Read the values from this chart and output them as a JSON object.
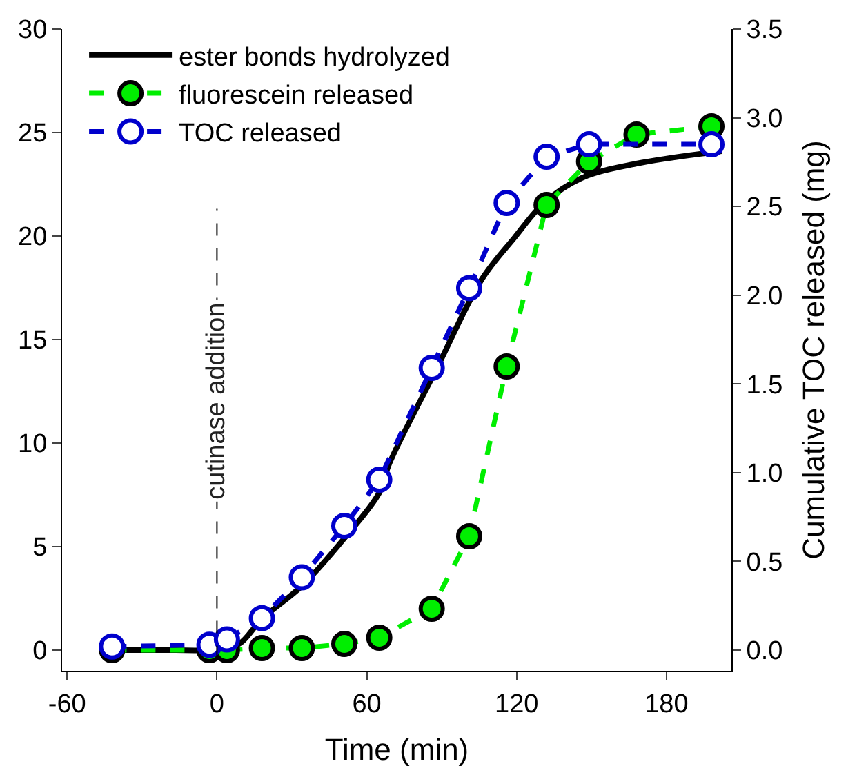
{
  "chart_data": {
    "type": "line",
    "xlabel": "Time (min)",
    "y2label": "Cumulative TOC released (mg)",
    "xlim": [
      -62,
      206
    ],
    "xticks": [
      -60,
      0,
      60,
      120,
      180
    ],
    "ylim": [
      -1,
      30
    ],
    "yticks": [
      0,
      5,
      10,
      15,
      20,
      25,
      30
    ],
    "y2lim": [
      -0.117,
      3.5
    ],
    "y2ticks": [
      {
        "value": 0,
        "label": "0.0"
      },
      0.5,
      {
        "value": 1,
        "label": "1.0"
      },
      1.5,
      {
        "value": 2,
        "label": "2.0"
      },
      2.5,
      {
        "value": 3,
        "label": "3.0"
      },
      3.5
    ],
    "legend": "top left",
    "ref_lines": [
      {
        "axis": "x",
        "value": 0,
        "label": "cutinase addition",
        "color": "#000000",
        "line_style": "dashed"
      }
    ],
    "series": [
      {
        "name": "ester bonds hydrolyzed",
        "color": "#000000",
        "marker": "none",
        "line_style": "solid",
        "x": [
          -45,
          -20,
          0,
          5,
          10,
          18,
          34,
          51,
          65,
          69,
          88,
          106,
          119,
          131,
          146,
          168,
          202
        ],
        "values": [
          0,
          0,
          0,
          0.1,
          0.4,
          1.5,
          3.1,
          5.4,
          7.6,
          9.0,
          13.6,
          17.9,
          19.9,
          21.6,
          22.8,
          23.5,
          24.1
        ]
      },
      {
        "name": "fluorescein released",
        "color": "#00ee00",
        "marker": "circle",
        "line_style": "dashed",
        "x": [
          -42,
          -3,
          4,
          18,
          34,
          51,
          65,
          86,
          101,
          116,
          132,
          149,
          168,
          198
        ],
        "values": [
          0,
          0,
          0,
          0.1,
          0.1,
          0.3,
          0.6,
          2.0,
          5.5,
          13.7,
          21.5,
          23.6,
          24.9,
          25.3
        ]
      },
      {
        "name": "TOC released",
        "color": "#0000cc",
        "axis": "y2",
        "marker": "circle",
        "line_style": "dashed",
        "x": [
          -42,
          -3,
          4,
          18,
          34,
          51,
          65,
          86,
          101,
          116,
          132,
          149,
          168,
          198
        ],
        "values": [
          0.02,
          0.03,
          0.06,
          0.18,
          0.41,
          0.7,
          0.96,
          1.59,
          2.04,
          2.52,
          2.78,
          2.85,
          null,
          2.85
        ]
      }
    ]
  }
}
